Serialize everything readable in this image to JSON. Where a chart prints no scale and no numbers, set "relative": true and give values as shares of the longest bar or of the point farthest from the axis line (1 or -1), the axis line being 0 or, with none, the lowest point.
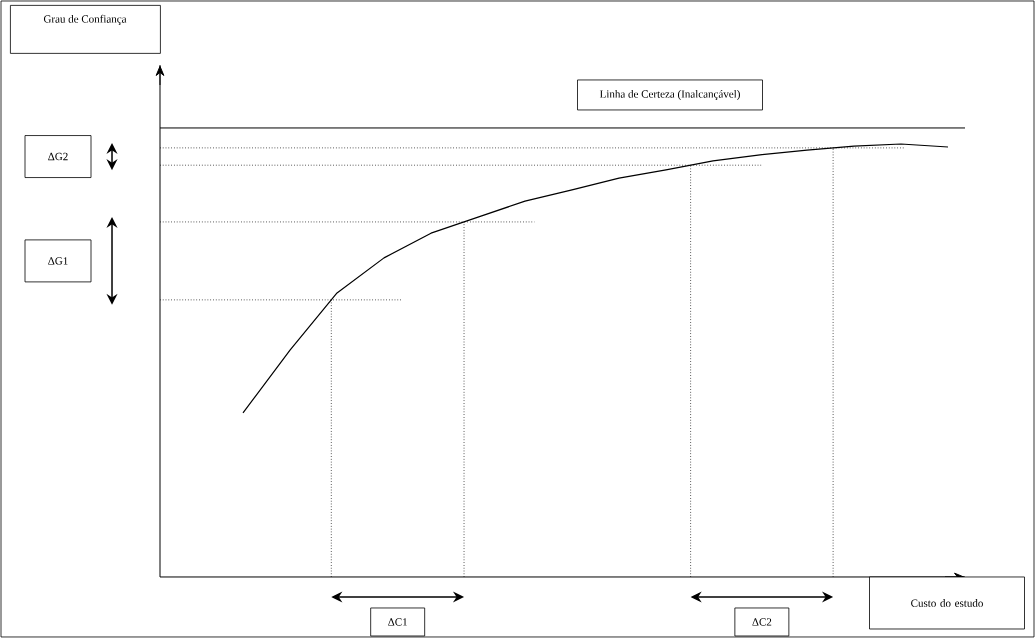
{
  "chart_data": {
    "type": "line",
    "relative": true,
    "xlabel": "Custo do estudo",
    "color": "#000000",
    "tick_labels": false,
    "categories": [
      null,
      null,
      null,
      null,
      null,
      null,
      null,
      null,
      null,
      null,
      null,
      null,
      null,
      null,
      null,
      null
    ],
    "values": [
      0.379,
      0.524,
      0.656,
      0.737,
      0.794,
      0.831,
      0.868,
      0.894,
      0.921,
      0.94,
      0.961,
      0.975,
      0.986,
      0.995,
      1,
      0.993
    ],
    "ref_lines": [
      {
        "axis": "y",
        "value": 1.037,
        "label": "Linha de Certeza (Inalcançável)"
      },
      {
        "axis": "y",
        "value": 0.64,
        "line_style": "dotted"
      },
      {
        "axis": "y",
        "value": 0.82,
        "line_style": "dotted"
      },
      {
        "axis": "y",
        "value": 0.951,
        "line_style": "dotted"
      },
      {
        "axis": "y",
        "value": 0.991,
        "line_style": "dotted"
      }
    ],
    "annotations": [
      "Grau de Confiança",
      "ΔG1",
      "ΔG2",
      "ΔC1",
      "ΔC2"
    ]
  }
}
